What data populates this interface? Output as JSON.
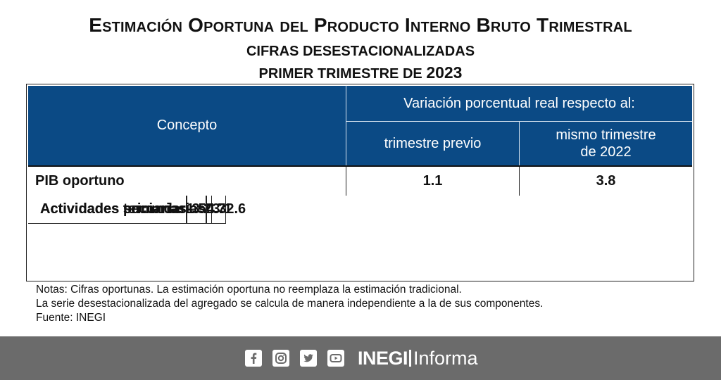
{
  "title": "Estimación Oportuna del Producto Interno Bruto Trimestral",
  "subtitle1": "CIFRAS DESESTACIONALIZADAS",
  "subtitle2_prefix": "PRIMER TRIMESTRE DE",
  "subtitle2_year": "2023",
  "table": {
    "header_concept": "Concepto",
    "header_variation": "Variación porcentual real respecto al:",
    "header_col2": "trimestre previo",
    "header_col3_line1": "mismo trimestre",
    "header_col3_line2": "de 2022",
    "rows": [
      {
        "label": "PIB oportuno",
        "prev": "1.1",
        "same": "3.8"
      },
      {
        "label": "Actividades primarias",
        "prev": "-3.2",
        "same": "3.1"
      },
      {
        "label": "Actividades secundarias",
        "prev": "0.7",
        "same": "2.6"
      },
      {
        "label": "Actividades terciarias",
        "prev": "1.5",
        "same": "4.3"
      }
    ]
  },
  "notes": [
    "Notas: Cifras oportunas. La estimación oportuna no reemplaza la estimación tradicional.",
    "La serie desestacionalizada del agregado se calcula de manera independiente a la de sus componentes.",
    "Fuente: INEGI"
  ],
  "footer": {
    "icons": [
      "facebook-icon",
      "instagram-icon",
      "twitter-icon",
      "youtube-icon"
    ],
    "brand_bold": "INEGI",
    "brand_light": "Informa"
  },
  "colors": {
    "header_blue": "#0b4a85",
    "footer_gray": "#6b6b6b"
  }
}
